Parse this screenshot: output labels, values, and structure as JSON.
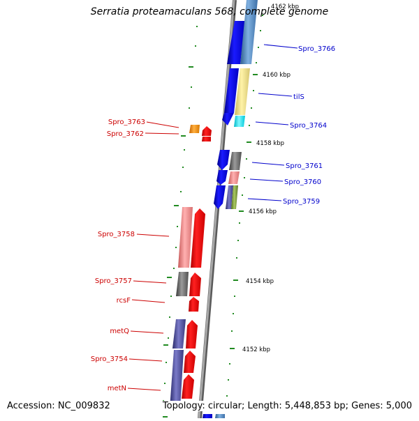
{
  "title": "Serratia proteamaculans 568, complete genome",
  "accession": "Accession: NC_009832",
  "topology": "Topology: circular; Length: 5,448,853 bp; Genes: 5,000",
  "colors": {
    "forward_label": "#0000cc",
    "reverse_label": "#cc0000",
    "backbone": "#8c8c8c",
    "tick": "#228b22"
  },
  "ticks": [
    {
      "label": "4162 kbp"
    },
    {
      "label": "4160 kbp"
    },
    {
      "label": "4158 kbp"
    },
    {
      "label": "4156 kbp"
    },
    {
      "label": "4154 kbp"
    },
    {
      "label": "4152 kbp"
    }
  ],
  "forward_labels": [
    "Spro_3766",
    "tilS",
    "Spro_3764",
    "Spro_3761",
    "Spro_3760",
    "Spro_3759"
  ],
  "reverse_labels": [
    "Spro_3763",
    "Spro_3762",
    "Spro_3758",
    "Spro_3757",
    "rcsF",
    "metQ",
    "Spro_3754",
    "metN"
  ]
}
